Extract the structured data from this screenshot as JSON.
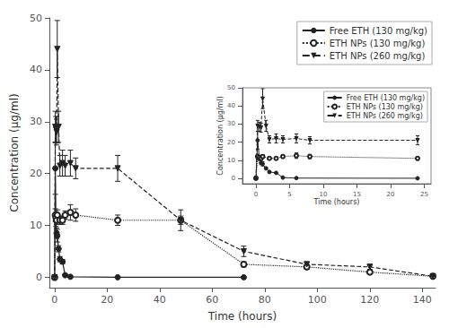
{
  "chart_data": [
    {
      "type": "line",
      "xlabel": "Time (hours)",
      "ylabel": "Concentration (μg/ml)",
      "xlim": [
        -2,
        145
      ],
      "ylim": [
        -2,
        50
      ],
      "xticks": [
        0,
        20,
        40,
        60,
        80,
        100,
        120,
        140
      ],
      "yticks": [
        0,
        10,
        20,
        30,
        40,
        50
      ],
      "grid": false,
      "legend": "upper right",
      "series": [
        {
          "name": "Free ETH (130 mg/kg)",
          "color": "#222222",
          "marker": "circle",
          "line_style": "solid",
          "x": [
            0,
            0.25,
            0.5,
            0.75,
            1,
            1.5,
            2,
            3,
            4,
            6,
            24,
            72
          ],
          "values": [
            0.0,
            21.0,
            11.0,
            8.5,
            8.0,
            5.5,
            3.5,
            3.0,
            0.4,
            0.1,
            0.0,
            0.0
          ],
          "yerr": [
            0,
            5.0,
            1.2,
            1.0,
            1.2,
            0.6,
            0.5,
            0.4,
            0.2,
            0.1,
            0,
            0
          ]
        },
        {
          "name": "ETH NPs (130 mg/kg)",
          "color": "#222222",
          "marker": "open_circle",
          "line_style": "dotted",
          "x": [
            0,
            0.25,
            0.5,
            0.75,
            1,
            2,
            3,
            4,
            6,
            8,
            24,
            48,
            72,
            96,
            120,
            144
          ],
          "values": [
            0.0,
            12.0,
            11.5,
            11.0,
            12.0,
            11.0,
            11.0,
            12.0,
            12.5,
            12.0,
            11.0,
            11.0,
            2.5,
            2.0,
            1.0,
            0.2
          ],
          "yerr": [
            0,
            1.2,
            0.8,
            0.8,
            1.0,
            0.8,
            0.8,
            0.8,
            1.5,
            1.2,
            1.0,
            0.8,
            0.5,
            0.4,
            0.3,
            0.1
          ]
        },
        {
          "name": "ETH NPs (260 mg/kg)",
          "color": "#222222",
          "marker": "triangle_down",
          "line_style": "dashed",
          "x": [
            0,
            0.25,
            0.5,
            0.75,
            1,
            1.5,
            2,
            3,
            4,
            6,
            8,
            24,
            48,
            72,
            96,
            120,
            144
          ],
          "values": [
            0.0,
            29.0,
            28.5,
            28.0,
            44.0,
            29.0,
            21.5,
            22.0,
            21.5,
            22.0,
            21.0,
            21.0,
            11.0,
            5.0,
            2.5,
            2.0,
            0.2
          ],
          "yerr": [
            0,
            3.0,
            2.5,
            2.5,
            5.5,
            3.0,
            2.0,
            2.5,
            2.0,
            2.5,
            2.0,
            2.5,
            2.0,
            1.0,
            0.5,
            0.5,
            0.1
          ]
        }
      ]
    },
    {
      "type": "line",
      "xlabel": "Time (hours)",
      "ylabel": "Concentration (μg/ml)",
      "xlim": [
        -2,
        26
      ],
      "ylim": [
        -3,
        50
      ],
      "xticks": [
        0,
        5,
        10,
        15,
        20,
        25
      ],
      "yticks": [
        0,
        10,
        20,
        30,
        40,
        50
      ],
      "grid": false,
      "legend": "upper right",
      "series": [
        {
          "name": "Free ETH (130 mg/kg)",
          "color": "#222222",
          "marker": "circle",
          "line_style": "solid",
          "x": [
            0,
            0.25,
            0.5,
            0.75,
            1,
            1.5,
            2,
            3,
            4,
            6,
            24
          ],
          "values": [
            0.0,
            21.0,
            11.0,
            8.5,
            8.0,
            5.5,
            3.5,
            3.0,
            0.4,
            0.1,
            0.0
          ],
          "yerr": [
            0,
            5.0,
            1.2,
            1.0,
            1.2,
            0.6,
            0.5,
            0.4,
            0.2,
            0.1,
            0
          ]
        },
        {
          "name": "ETH NPs (130 mg/kg)",
          "color": "#222222",
          "marker": "open_circle",
          "line_style": "dotted",
          "x": [
            0,
            0.25,
            0.5,
            0.75,
            1,
            2,
            3,
            4,
            6,
            8,
            24
          ],
          "values": [
            0.0,
            12.0,
            11.5,
            11.0,
            12.0,
            11.0,
            11.0,
            12.0,
            12.5,
            12.0,
            11.0
          ],
          "yerr": [
            0,
            1.2,
            0.8,
            0.8,
            1.0,
            0.8,
            0.8,
            0.8,
            1.5,
            1.2,
            1.0
          ]
        },
        {
          "name": "ETH NPs (260 mg/kg)",
          "color": "#222222",
          "marker": "triangle_down",
          "line_style": "dashed",
          "x": [
            0,
            0.25,
            0.5,
            0.75,
            1,
            1.5,
            2,
            3,
            4,
            6,
            8,
            24
          ],
          "values": [
            0.0,
            29.0,
            28.5,
            28.0,
            44.0,
            29.0,
            21.5,
            22.0,
            21.5,
            22.0,
            21.0,
            21.0
          ],
          "yerr": [
            0,
            3.0,
            2.5,
            2.5,
            5.5,
            3.0,
            2.0,
            2.5,
            2.0,
            2.5,
            2.0,
            2.5
          ]
        }
      ]
    }
  ]
}
